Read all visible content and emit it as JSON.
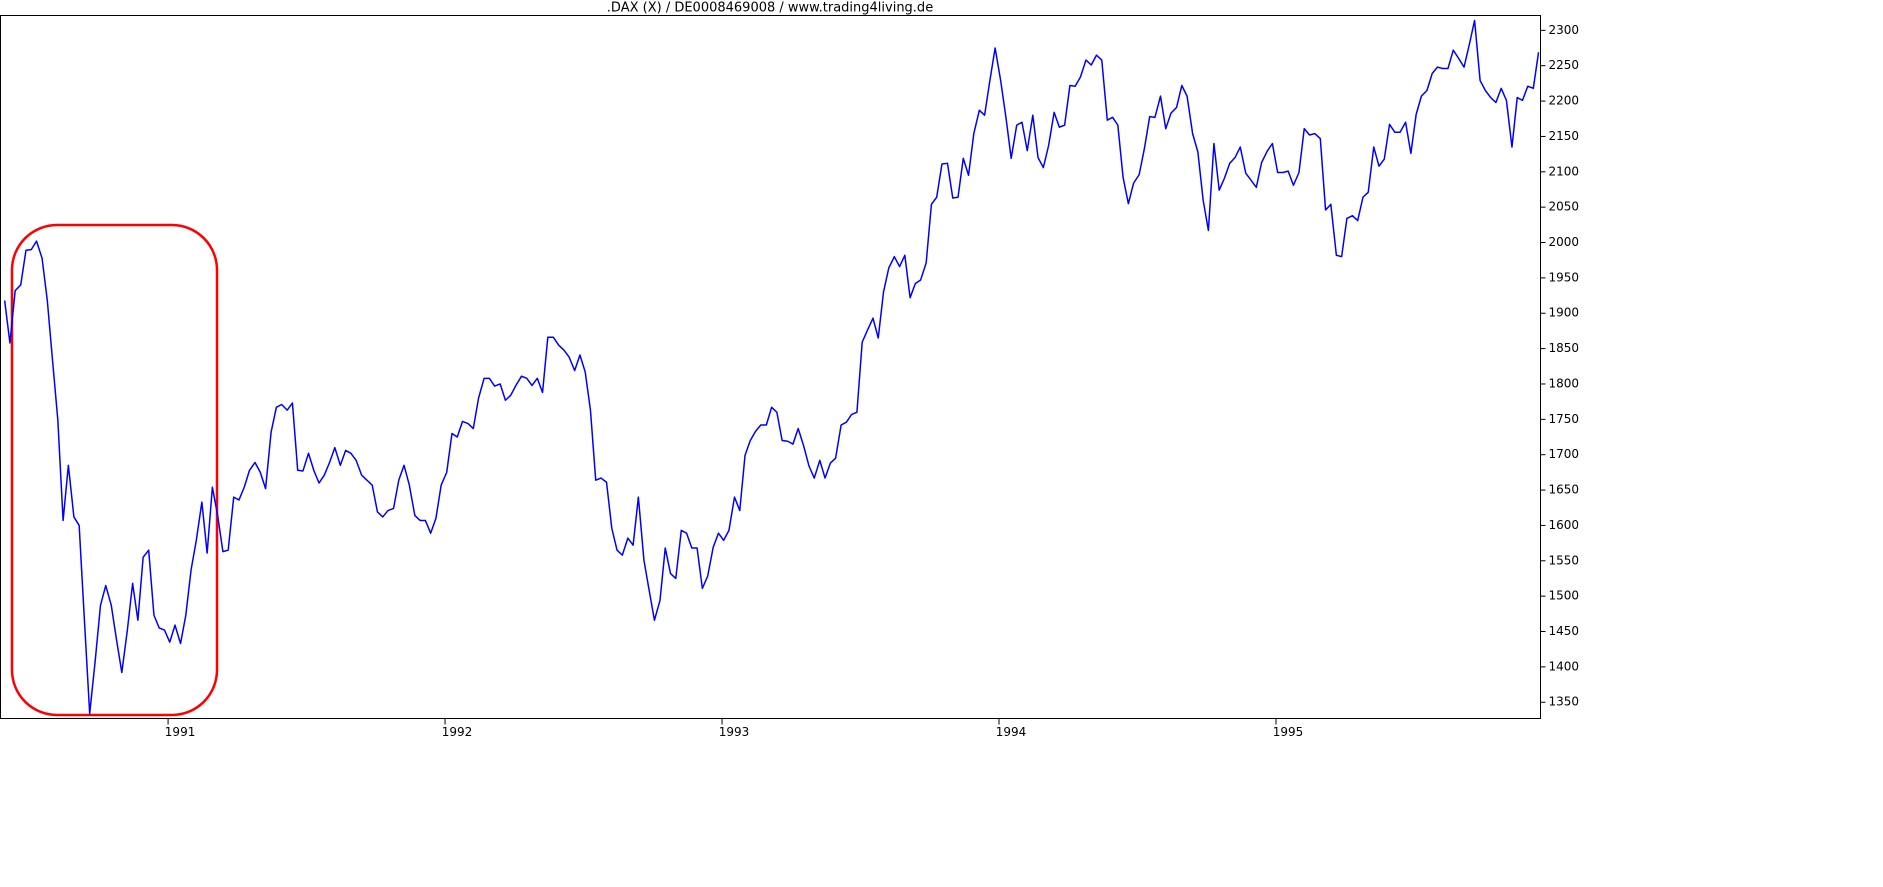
{
  "chart_data": {
    "type": "line",
    "title": ".DAX (X) / DE0008469008 / www.trading4living.de",
    "color": "#0000ff",
    "xlim": [
      1990.395,
      1995.955
    ],
    "xticks": [
      1991,
      1992,
      1993,
      1994,
      1995
    ],
    "ylim": [
      1327,
      2321
    ],
    "yticks": [
      1350,
      1400,
      1450,
      1500,
      1550,
      1600,
      1650,
      1700,
      1750,
      1800,
      1850,
      1900,
      1950,
      2000,
      2050,
      2100,
      2150,
      2200,
      2250,
      2300
    ],
    "x": [
      1990.41,
      1990.429,
      1990.448,
      1990.468,
      1990.487,
      1990.506,
      1990.525,
      1990.545,
      1990.564,
      1990.583,
      1990.602,
      1990.621,
      1990.64,
      1990.66,
      1990.679,
      1990.698,
      1990.717,
      1990.737,
      1990.756,
      1990.775,
      1990.795,
      1990.814,
      1990.833,
      1990.853,
      1990.872,
      1990.891,
      1990.91,
      1990.93,
      1990.949,
      1990.968,
      1990.987,
      1991.006,
      1991.025,
      1991.045,
      1991.064,
      1991.083,
      1991.102,
      1991.122,
      1991.141,
      1991.16,
      1991.179,
      1991.198,
      1991.217,
      1991.237,
      1991.256,
      1991.275,
      1991.294,
      1991.314,
      1991.333,
      1991.352,
      1991.372,
      1991.391,
      1991.41,
      1991.43,
      1991.449,
      1991.468,
      1991.487,
      1991.507,
      1991.526,
      1991.545,
      1991.564,
      1991.583,
      1991.602,
      1991.622,
      1991.641,
      1991.66,
      1991.679,
      1991.699,
      1991.718,
      1991.737,
      1991.756,
      1991.775,
      1991.794,
      1991.814,
      1991.833,
      1991.852,
      1991.871,
      1991.891,
      1991.91,
      1991.929,
      1991.948,
      1991.967,
      1991.986,
      1992.006,
      1992.025,
      1992.044,
      1992.063,
      1992.083,
      1992.102,
      1992.121,
      1992.141,
      1992.16,
      1992.179,
      1992.199,
      1992.218,
      1992.237,
      1992.256,
      1992.276,
      1992.295,
      1992.314,
      1992.333,
      1992.352,
      1992.371,
      1992.391,
      1992.41,
      1992.429,
      1992.448,
      1992.468,
      1992.487,
      1992.506,
      1992.525,
      1992.544,
      1992.563,
      1992.583,
      1992.602,
      1992.621,
      1992.64,
      1992.66,
      1992.679,
      1992.698,
      1992.718,
      1992.737,
      1992.756,
      1992.776,
      1992.795,
      1992.814,
      1992.833,
      1992.853,
      1992.872,
      1992.891,
      1992.91,
      1992.929,
      1992.948,
      1992.968,
      1992.987,
      1993.006,
      1993.025,
      1993.045,
      1993.064,
      1993.083,
      1993.102,
      1993.121,
      1993.14,
      1993.16,
      1993.179,
      1993.198,
      1993.217,
      1993.237,
      1993.256,
      1993.275,
      1993.295,
      1993.314,
      1993.333,
      1993.353,
      1993.372,
      1993.391,
      1993.41,
      1993.43,
      1993.449,
      1993.468,
      1993.487,
      1993.506,
      1993.525,
      1993.545,
      1993.564,
      1993.583,
      1993.602,
      1993.622,
      1993.641,
      1993.66,
      1993.679,
      1993.698,
      1993.717,
      1993.737,
      1993.756,
      1993.775,
      1993.794,
      1993.814,
      1993.833,
      1993.852,
      1993.871,
      1993.89,
      1993.909,
      1993.929,
      1993.948,
      1993.967,
      1993.986,
      1994.006,
      1994.025,
      1994.044,
      1994.064,
      1994.083,
      1994.102,
      1994.122,
      1994.141,
      1994.16,
      1994.179,
      1994.199,
      1994.218,
      1994.237,
      1994.256,
      1994.275,
      1994.294,
      1994.314,
      1994.333,
      1994.352,
      1994.371,
      1994.391,
      1994.41,
      1994.429,
      1994.448,
      1994.467,
      1994.486,
      1994.506,
      1994.525,
      1994.544,
      1994.563,
      1994.583,
      1994.602,
      1994.621,
      1994.641,
      1994.66,
      1994.679,
      1994.699,
      1994.718,
      1994.737,
      1994.756,
      1994.776,
      1994.795,
      1994.814,
      1994.833,
      1994.852,
      1994.871,
      1994.891,
      1994.91,
      1994.929,
      1994.948,
      1994.968,
      1994.987,
      1995.006,
      1995.025,
      1995.044,
      1995.063,
      1995.083,
      1995.102,
      1995.121,
      1995.14,
      1995.16,
      1995.179,
      1995.198,
      1995.218,
      1995.237,
      1995.256,
      1995.276,
      1995.295,
      1995.314,
      1995.333,
      1995.353,
      1995.372,
      1995.391,
      1995.41,
      1995.429,
      1995.448,
      1995.468,
      1995.487,
      1995.506,
      1995.525,
      1995.545,
      1995.564,
      1995.583,
      1995.602,
      1995.621,
      1995.64,
      1995.66,
      1995.679,
      1995.698,
      1995.717,
      1995.737,
      1995.756,
      1995.775,
      1995.794,
      1995.813,
      1995.832,
      1995.852,
      1995.871,
      1995.89,
      1995.909,
      1995.929,
      1995.948
    ],
    "values": [
      1918,
      1858,
      1932,
      1940,
      1989,
      1990,
      2002,
      1978,
      1918,
      1833,
      1749,
      1607,
      1685,
      1612,
      1600,
      1466,
      1334,
      1409,
      1487,
      1515,
      1487,
      1438,
      1392,
      1452,
      1518,
      1466,
      1555,
      1565,
      1473,
      1455,
      1452,
      1435,
      1459,
      1433,
      1473,
      1537,
      1579,
      1633,
      1561,
      1654,
      1614,
      1563,
      1565,
      1640,
      1636,
      1654,
      1678,
      1689,
      1675,
      1652,
      1732,
      1767,
      1771,
      1763,
      1773,
      1678,
      1677,
      1702,
      1678,
      1660,
      1671,
      1689,
      1710,
      1685,
      1706,
      1702,
      1692,
      1671,
      1664,
      1657,
      1619,
      1612,
      1621,
      1624,
      1664,
      1685,
      1657,
      1614,
      1607,
      1607,
      1589,
      1610,
      1657,
      1675,
      1730,
      1725,
      1747,
      1744,
      1737,
      1780,
      1808,
      1808,
      1797,
      1800,
      1777,
      1784,
      1798,
      1811,
      1808,
      1798,
      1808,
      1788,
      1866,
      1866,
      1855,
      1848,
      1838,
      1819,
      1841,
      1817,
      1763,
      1664,
      1667,
      1661,
      1596,
      1565,
      1558,
      1582,
      1572,
      1640,
      1551,
      1508,
      1466,
      1494,
      1568,
      1532,
      1525,
      1593,
      1589,
      1568,
      1568,
      1511,
      1528,
      1569,
      1589,
      1579,
      1593,
      1640,
      1621,
      1699,
      1720,
      1733,
      1742,
      1742,
      1767,
      1760,
      1720,
      1719,
      1715,
      1737,
      1712,
      1684,
      1667,
      1692,
      1667,
      1688,
      1695,
      1742,
      1746,
      1757,
      1760,
      1859,
      1876,
      1893,
      1865,
      1930,
      1964,
      1980,
      1966,
      1982,
      1922,
      1942,
      1947,
      1971,
      2054,
      2064,
      2111,
      2112,
      2063,
      2064,
      2119,
      2095,
      2154,
      2187,
      2180,
      2229,
      2275,
      2229,
      2177,
      2119,
      2166,
      2170,
      2130,
      2180,
      2120,
      2106,
      2137,
      2184,
      2163,
      2166,
      2222,
      2221,
      2234,
      2258,
      2251,
      2265,
      2258,
      2173,
      2177,
      2166,
      2092,
      2055,
      2084,
      2096,
      2133,
      2178,
      2177,
      2207,
      2161,
      2183,
      2191,
      2222,
      2207,
      2154,
      2128,
      2060,
      2017,
      2140,
      2074,
      2091,
      2112,
      2120,
      2135,
      2098,
      2088,
      2078,
      2113,
      2129,
      2140,
      2099,
      2099,
      2101,
      2081,
      2099,
      2161,
      2152,
      2154,
      2147,
      2046,
      2054,
      1982,
      1980,
      2034,
      2038,
      2031,
      2064,
      2071,
      2135,
      2108,
      2118,
      2167,
      2156,
      2156,
      2170,
      2126,
      2181,
      2207,
      2215,
      2239,
      2248,
      2246,
      2246,
      2272,
      2260,
      2248,
      2280,
      2314,
      2229,
      2215,
      2205,
      2198,
      2218,
      2201,
      2135,
      2205,
      2201,
      2221,
      2218,
      2269
    ]
  }
}
